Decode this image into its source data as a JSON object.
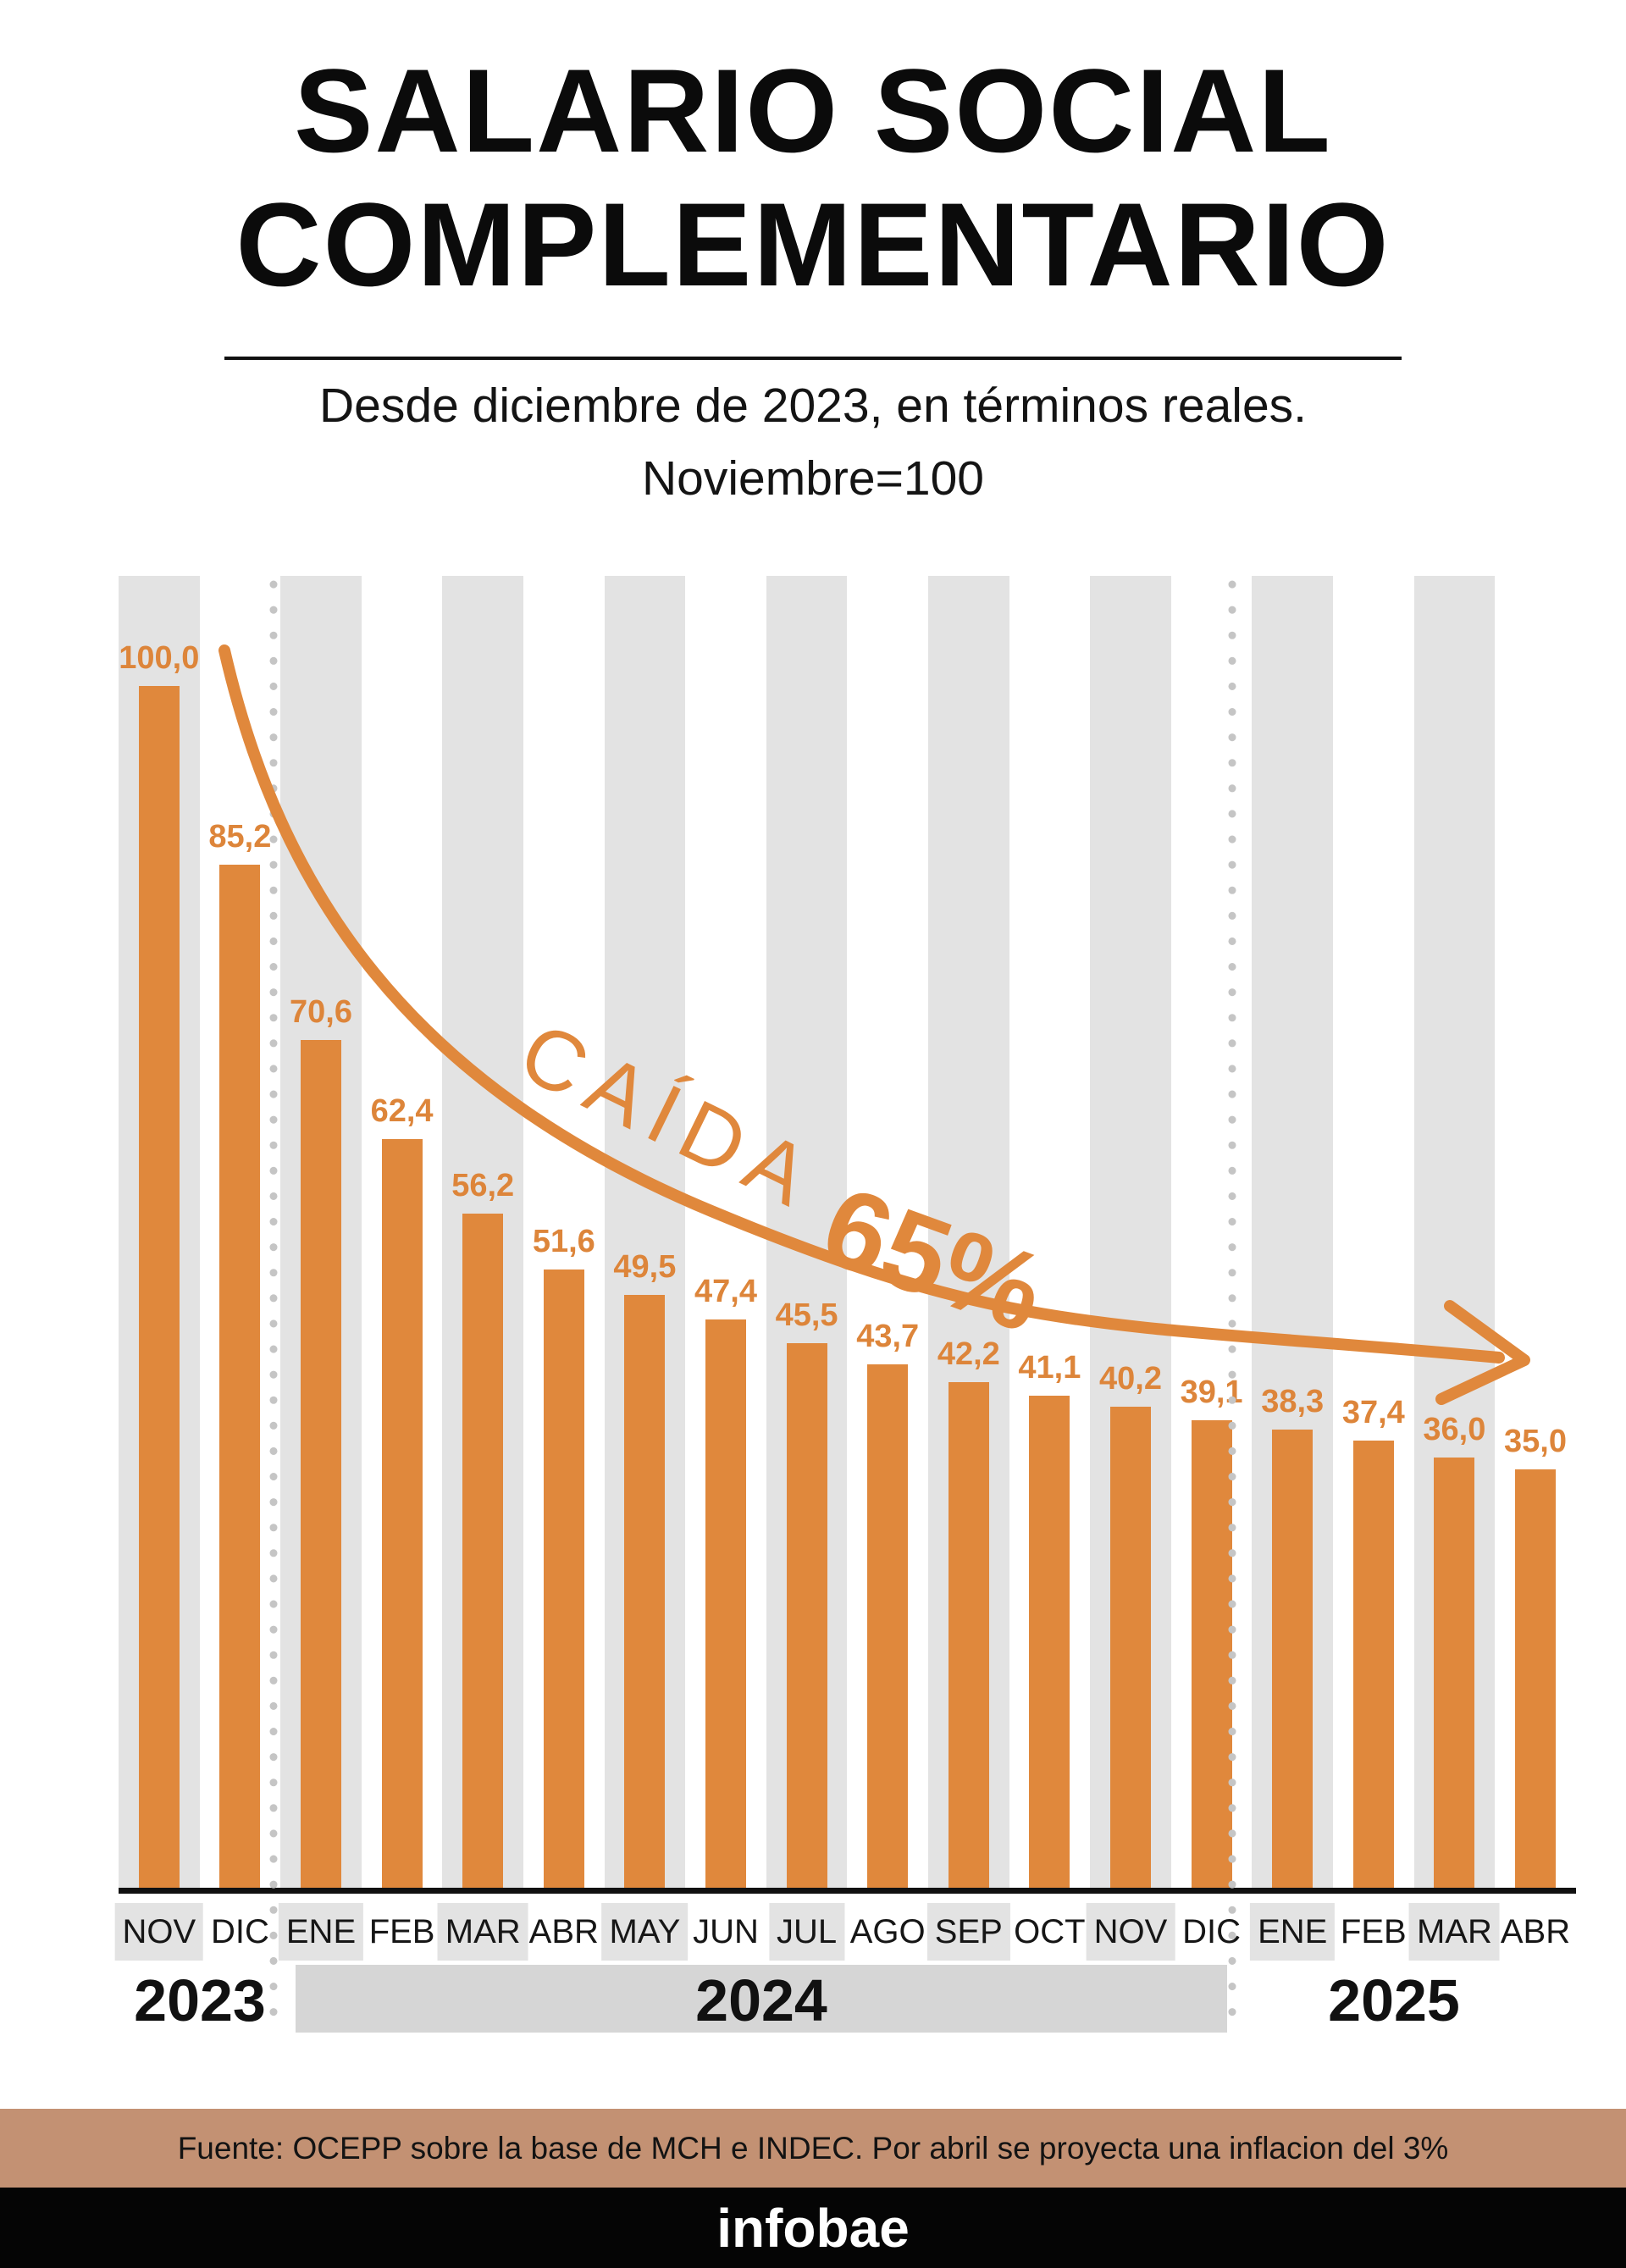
{
  "title": {
    "line1": "SALARIO SOCIAL",
    "line2": "COMPLEMENTARIO"
  },
  "subtitle": {
    "line1": "Desde diciembre de 2023, en términos reales.",
    "line2": "Noviembre=100"
  },
  "annotation": {
    "word": "CAÍDA",
    "pct": "65%"
  },
  "years": {
    "y2023": "2023",
    "y2024": "2024",
    "y2025": "2025"
  },
  "footer": {
    "source": "Fuente: OCEPP sobre la base de MCH e INDEC. Por abril se proyecta una inflacion del 3%",
    "brand": "infobae"
  },
  "colors": {
    "bar_orange": "#e0883c",
    "stripe_grey": "#e3e3e3",
    "year_band_grey": "#d6d6d6",
    "dot_grey": "#c5c5c5",
    "source_band_tan": "#c39173",
    "brand_band_black": "#050505"
  },
  "chart_data": {
    "type": "bar",
    "title": "SALARIO SOCIAL COMPLEMENTARIO",
    "subtitle": "Desde diciembre de 2023, en términos reales. Noviembre=100",
    "categories": [
      "NOV",
      "DIC",
      "ENE",
      "FEB",
      "MAR",
      "ABR",
      "MAY",
      "JUN",
      "JUL",
      "AGO",
      "SEP",
      "OCT",
      "NOV",
      "DIC",
      "ENE",
      "FEB",
      "MAR",
      "ABR"
    ],
    "year_groups": [
      {
        "label": "2023",
        "from": 0,
        "to": 1
      },
      {
        "label": "2024",
        "from": 2,
        "to": 13
      },
      {
        "label": "2025",
        "from": 14,
        "to": 17
      }
    ],
    "values": [
      100.0,
      85.2,
      70.6,
      62.4,
      56.2,
      51.6,
      49.5,
      47.4,
      45.5,
      43.7,
      42.2,
      41.1,
      40.2,
      39.1,
      38.3,
      37.4,
      36.0,
      35.0
    ],
    "value_labels": [
      "100,0",
      "85,2",
      "70,6",
      "62,4",
      "56,2",
      "51,6",
      "49,5",
      "47,4",
      "45,5",
      "43,7",
      "42,2",
      "41,1",
      "40,2",
      "39,1",
      "38,3",
      "37,4",
      "36,0",
      "35,0"
    ],
    "annotation": "CAÍDA 65%",
    "ylim": [
      0,
      105
    ],
    "xlabel": "",
    "ylabel": "",
    "legend": "none",
    "grid": "off",
    "bar_color": "#e0883c"
  }
}
